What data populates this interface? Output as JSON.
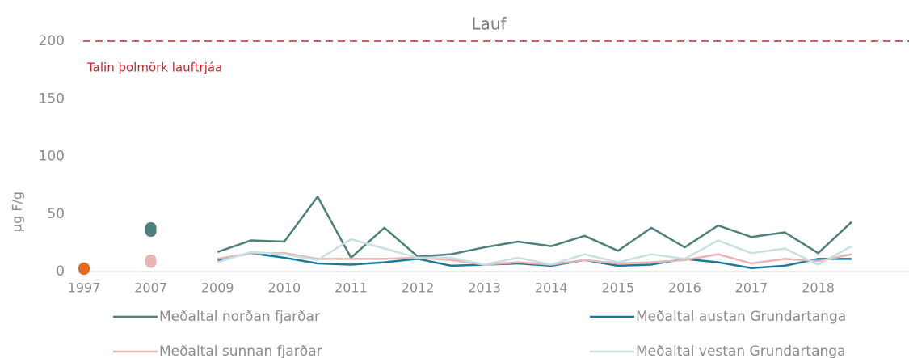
{
  "chart_data": {
    "type": "line",
    "title": "Lauf",
    "y_label": "µg F/g",
    "ylim": [
      0,
      200
    ],
    "yticks": [
      0,
      50,
      100,
      150,
      200
    ],
    "grid": false,
    "categories": [
      "1997",
      null,
      "2007",
      null,
      "2009",
      null,
      "2010",
      null,
      "2011",
      null,
      "2012",
      null,
      "2013",
      null,
      "2014",
      null,
      "2015",
      null,
      "2016",
      null,
      "2017",
      null,
      "2018",
      null
    ],
    "series": [
      {
        "name": "Meðaltal norðan fjarðar",
        "color": "#4e7f7c",
        "values": [
          null,
          null,
          null,
          null,
          17,
          27,
          26,
          65,
          12,
          38,
          13,
          15,
          21,
          26,
          22,
          31,
          18,
          38,
          21,
          40,
          30,
          34,
          16,
          43
        ]
      },
      {
        "name": "Meðaltal austan Grundartanga",
        "color": "#1a7a9c",
        "values": [
          null,
          null,
          null,
          null,
          10,
          16,
          12,
          7,
          6,
          8,
          11,
          5,
          6,
          7,
          5,
          10,
          5,
          6,
          11,
          8,
          3,
          5,
          11,
          11
        ]
      },
      {
        "name": "Meðaltal sunnan fjarðar",
        "color": "#e8b4b4",
        "values": [
          null,
          null,
          null,
          null,
          11,
          16,
          16,
          11,
          11,
          11,
          12,
          10,
          6,
          8,
          6,
          10,
          7,
          8,
          10,
          15,
          7,
          11,
          9,
          15
        ]
      },
      {
        "name": "Meðaltal vestan Grundartanga",
        "color": "#c9dfe3",
        "values": [
          null,
          null,
          null,
          null,
          8,
          17,
          15,
          10,
          28,
          20,
          12,
          12,
          6,
          12,
          6,
          15,
          8,
          15,
          11,
          27,
          16,
          20,
          6,
          22
        ]
      }
    ],
    "points": [
      {
        "category": "1997",
        "color": "#e26b1c",
        "values": [
          2,
          3
        ]
      },
      {
        "category": "2007",
        "color": "#4e7f7c",
        "values": [
          38,
          35
        ]
      },
      {
        "category": "2007",
        "color": "#e8b4b4",
        "values": [
          10,
          8
        ]
      }
    ],
    "reference_line": {
      "text": "Talin þolmörk lauftrjáa",
      "value": 200,
      "color": "#c0282d"
    }
  }
}
